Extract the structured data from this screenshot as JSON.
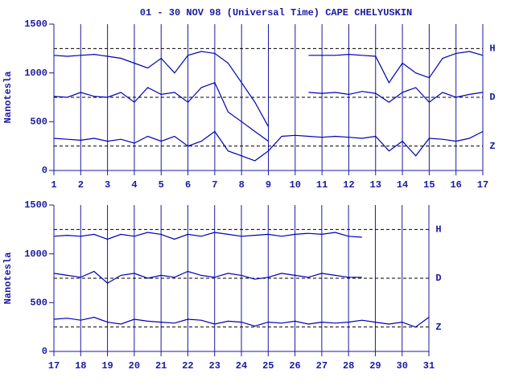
{
  "chart_data": [
    {
      "type": "line",
      "title": "01 - 30 NOV 98 (Universal Time) CAPE CHELYUSKIN",
      "ylabel": "Nanotesla",
      "x": [
        1,
        1.5,
        2,
        2.5,
        3,
        3.5,
        4,
        4.5,
        5,
        5.5,
        6,
        6.5,
        7,
        7.5,
        8,
        8.5,
        9,
        9.5,
        10,
        10.5,
        11,
        11.5,
        12,
        12.5,
        13,
        13.5,
        14,
        14.5,
        15,
        15.5,
        16,
        16.5,
        17
      ],
      "xlim": [
        1,
        17
      ],
      "xticks": [
        1,
        2,
        3,
        4,
        5,
        6,
        7,
        8,
        9,
        10,
        11,
        12,
        13,
        14,
        15,
        16,
        17
      ],
      "ylim": [
        0,
        1500
      ],
      "yticks": [
        0,
        500,
        1000,
        1500
      ],
      "grid": true,
      "series": [
        {
          "name": "H",
          "color": "#0000b4",
          "baseline": 1250,
          "values": [
            1180,
            1170,
            1180,
            1190,
            1170,
            1150,
            1100,
            1050,
            1150,
            1000,
            1180,
            1220,
            1200,
            1100,
            900,
            700,
            450,
            null,
            null,
            1180,
            1180,
            1180,
            1190,
            1180,
            1170,
            900,
            1100,
            1000,
            950,
            1150,
            1200,
            1220,
            1180
          ]
        },
        {
          "name": "D",
          "color": "#0000b4",
          "baseline": 750,
          "values": [
            760,
            750,
            800,
            760,
            750,
            800,
            700,
            850,
            780,
            800,
            700,
            850,
            900,
            600,
            500,
            400,
            300,
            null,
            null,
            800,
            790,
            800,
            780,
            810,
            790,
            700,
            800,
            850,
            700,
            800,
            750,
            780,
            800
          ]
        },
        {
          "name": "Z",
          "color": "#0000b4",
          "baseline": 250,
          "values": [
            330,
            320,
            310,
            330,
            300,
            320,
            280,
            350,
            300,
            350,
            250,
            300,
            400,
            200,
            150,
            100,
            200,
            350,
            360,
            350,
            340,
            350,
            340,
            330,
            350,
            200,
            300,
            150,
            330,
            320,
            300,
            330,
            400
          ]
        }
      ]
    },
    {
      "type": "line",
      "ylabel": "Nanotesla",
      "x": [
        17,
        17.5,
        18,
        18.5,
        19,
        19.5,
        20,
        20.5,
        21,
        21.5,
        22,
        22.5,
        23,
        23.5,
        24,
        24.5,
        25,
        25.5,
        26,
        26.5,
        27,
        27.5,
        28,
        28.5,
        29,
        29.5,
        30,
        30.5,
        31
      ],
      "xlim": [
        17,
        31
      ],
      "xticks": [
        17,
        18,
        19,
        20,
        21,
        22,
        23,
        24,
        25,
        26,
        27,
        28,
        29,
        30,
        31
      ],
      "ylim": [
        0,
        1500
      ],
      "yticks": [
        0,
        500,
        1000,
        1500
      ],
      "grid": true,
      "series": [
        {
          "name": "H",
          "color": "#0000b4",
          "baseline": 1250,
          "values": [
            1180,
            1190,
            1180,
            1200,
            1150,
            1200,
            1180,
            1220,
            1200,
            1150,
            1200,
            1180,
            1220,
            1200,
            1180,
            1190,
            1200,
            1180,
            1200,
            1210,
            1200,
            1220,
            1180,
            1170,
            null,
            null,
            null,
            null,
            null
          ]
        },
        {
          "name": "D",
          "color": "#0000b4",
          "baseline": 750,
          "values": [
            800,
            780,
            760,
            820,
            700,
            780,
            800,
            750,
            780,
            760,
            820,
            780,
            760,
            800,
            780,
            740,
            760,
            800,
            780,
            760,
            800,
            780,
            760,
            760,
            null,
            null,
            null,
            null,
            null
          ]
        },
        {
          "name": "Z",
          "color": "#0000b4",
          "baseline": 250,
          "values": [
            330,
            340,
            320,
            350,
            300,
            280,
            330,
            310,
            300,
            290,
            330,
            320,
            280,
            310,
            300,
            260,
            300,
            290,
            310,
            280,
            300,
            290,
            300,
            320,
            300,
            280,
            300,
            250,
            350
          ]
        }
      ]
    }
  ]
}
